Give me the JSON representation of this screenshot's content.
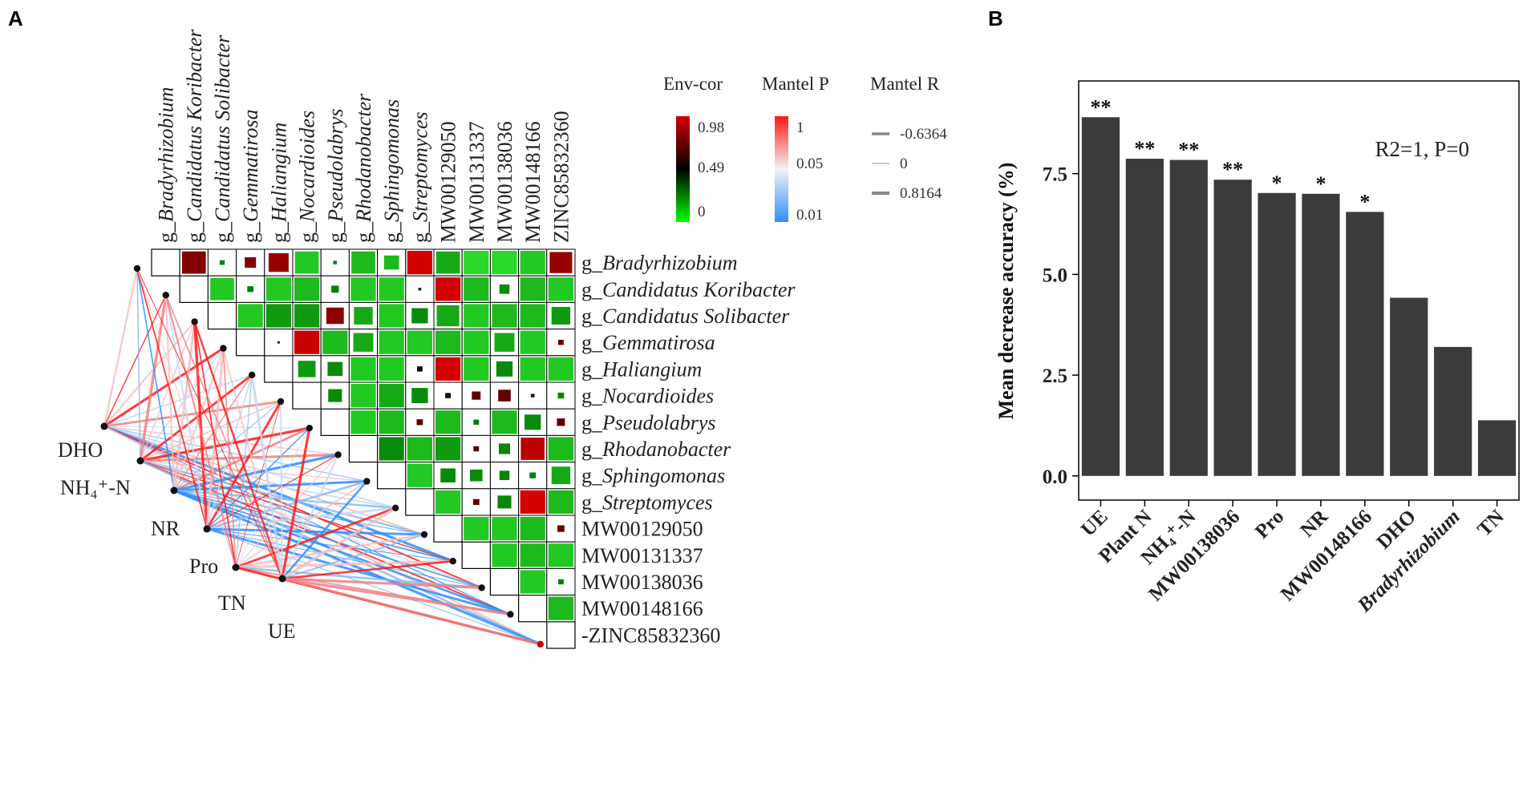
{
  "panels": {
    "a": "A",
    "b": "B"
  },
  "colors": {
    "env_high": "#d40000",
    "env_mid": "#000000",
    "env_low": "#00ff00",
    "mantel_high": "#ff1a1a",
    "mantel_mid": "#f2f2f2",
    "mantel_low": "#2e8fff",
    "bar": "#3b3b3b",
    "diag_green": "#2fe82f"
  },
  "chart_data": [
    {
      "type": "heatmap",
      "taxa_labels": [
        {
          "prefix": "g_",
          "name": "Bradyrhizobium",
          "italic": true
        },
        {
          "prefix": "g_",
          "name": "Candidatus Koribacter",
          "italic": true
        },
        {
          "prefix": "g_",
          "name": "Candidatus Solibacter",
          "italic": true
        },
        {
          "prefix": "g_",
          "name": "Gemmatirosa",
          "italic": true
        },
        {
          "prefix": "g_",
          "name": "Haliangium",
          "italic": true
        },
        {
          "prefix": "g_",
          "name": "Nocardioides",
          "italic": true
        },
        {
          "prefix": "g_",
          "name": "Pseudolabrys",
          "italic": true
        },
        {
          "prefix": "g_",
          "name": "Rhodanobacter",
          "italic": true
        },
        {
          "prefix": "g_",
          "name": "Sphingomonas",
          "italic": true
        },
        {
          "prefix": "g_",
          "name": "Streptomyces",
          "italic": true
        },
        {
          "prefix": "",
          "name": "MW00129050",
          "italic": false
        },
        {
          "prefix": "",
          "name": "MW00131337",
          "italic": false
        },
        {
          "prefix": "",
          "name": "MW00138036",
          "italic": false
        },
        {
          "prefix": "",
          "name": "MW00148166",
          "italic": false
        },
        {
          "prefix": "",
          "name": "ZINC85832360",
          "italic": false
        }
      ],
      "row_prefix_suffix": "-",
      "env_factors": [
        "DHO",
        "NH₄⁺-N",
        "NR",
        "Pro",
        "TN",
        "UE"
      ],
      "cells": [
        [
          1,
          0,
          0.78,
          0.95
        ],
        [
          2,
          0,
          0.08,
          0.2
        ],
        [
          3,
          0,
          0.78,
          0.45
        ],
        [
          4,
          0,
          0.82,
          0.8
        ],
        [
          5,
          0,
          0.02,
          0.95
        ],
        [
          6,
          0,
          0.08,
          0.15
        ],
        [
          7,
          0,
          0.03,
          0.95
        ],
        [
          8,
          0,
          0.03,
          0.6
        ],
        [
          9,
          0,
          0.98,
          1.0
        ],
        [
          10,
          0,
          0.04,
          0.95
        ],
        [
          11,
          0,
          0.01,
          1.0
        ],
        [
          12,
          0,
          0.01,
          1.0
        ],
        [
          13,
          0,
          0.02,
          1.0
        ],
        [
          14,
          0,
          0.82,
          0.9
        ],
        [
          2,
          1,
          0.02,
          0.95
        ],
        [
          3,
          1,
          0.1,
          0.25
        ],
        [
          4,
          1,
          0.02,
          1.0
        ],
        [
          5,
          1,
          0.03,
          1.0
        ],
        [
          6,
          1,
          0.1,
          0.3
        ],
        [
          7,
          1,
          0.02,
          1.0
        ],
        [
          8,
          1,
          0.02,
          1.0
        ],
        [
          9,
          1,
          0.3,
          0.12
        ],
        [
          10,
          1,
          0.95,
          1.0
        ],
        [
          11,
          1,
          0.03,
          1.0
        ],
        [
          12,
          1,
          0.06,
          0.4
        ],
        [
          13,
          1,
          0.03,
          1.0
        ],
        [
          14,
          1,
          0.02,
          1.0
        ],
        [
          3,
          2,
          0.02,
          1.0
        ],
        [
          4,
          2,
          0.05,
          1.0
        ],
        [
          5,
          2,
          0.05,
          1.0
        ],
        [
          6,
          2,
          0.8,
          0.7
        ],
        [
          7,
          2,
          0.04,
          0.75
        ],
        [
          8,
          2,
          0.02,
          1.0
        ],
        [
          9,
          2,
          0.06,
          0.65
        ],
        [
          10,
          2,
          0.04,
          0.9
        ],
        [
          11,
          2,
          0.02,
          1.0
        ],
        [
          12,
          2,
          0.03,
          1.0
        ],
        [
          13,
          2,
          0.03,
          1.0
        ],
        [
          14,
          2,
          0.05,
          0.75
        ],
        [
          4,
          3,
          0.3,
          0.1
        ],
        [
          5,
          3,
          0.93,
          1.0
        ],
        [
          6,
          3,
          0.03,
          1.0
        ],
        [
          7,
          3,
          0.04,
          0.8
        ],
        [
          8,
          3,
          0.02,
          1.0
        ],
        [
          9,
          3,
          0.02,
          1.0
        ],
        [
          10,
          3,
          0.03,
          1.0
        ],
        [
          11,
          3,
          0.02,
          1.0
        ],
        [
          12,
          3,
          0.04,
          0.8
        ],
        [
          13,
          3,
          0.02,
          1.0
        ],
        [
          14,
          3,
          0.7,
          0.22
        ],
        [
          5,
          4,
          0.05,
          0.7
        ],
        [
          6,
          4,
          0.06,
          0.6
        ],
        [
          7,
          4,
          0.02,
          1.0
        ],
        [
          8,
          4,
          0.02,
          1.0
        ],
        [
          9,
          4,
          0.55,
          0.22
        ],
        [
          10,
          4,
          0.97,
          1.0
        ],
        [
          11,
          4,
          0.02,
          1.0
        ],
        [
          12,
          4,
          0.06,
          0.65
        ],
        [
          13,
          4,
          0.02,
          1.0
        ],
        [
          14,
          4,
          0.02,
          1.0
        ],
        [
          6,
          5,
          0.06,
          0.55
        ],
        [
          7,
          5,
          0.02,
          1.0
        ],
        [
          8,
          5,
          0.04,
          1.0
        ],
        [
          9,
          5,
          0.06,
          0.65
        ],
        [
          10,
          5,
          0.45,
          0.22
        ],
        [
          11,
          5,
          0.7,
          0.35
        ],
        [
          12,
          5,
          0.72,
          0.5
        ],
        [
          13,
          5,
          0.35,
          0.15
        ],
        [
          14,
          5,
          0.08,
          0.25
        ],
        [
          7,
          6,
          0.02,
          1.0
        ],
        [
          8,
          6,
          0.03,
          1.0
        ],
        [
          9,
          6,
          0.7,
          0.25
        ],
        [
          10,
          6,
          0.03,
          1.0
        ],
        [
          11,
          6,
          0.1,
          0.22
        ],
        [
          12,
          6,
          0.03,
          1.0
        ],
        [
          13,
          6,
          0.06,
          0.65
        ],
        [
          14,
          6,
          0.7,
          0.32
        ],
        [
          8,
          7,
          0.06,
          1.0
        ],
        [
          9,
          7,
          0.03,
          1.0
        ],
        [
          10,
          7,
          0.05,
          1.0
        ],
        [
          11,
          7,
          0.65,
          0.22
        ],
        [
          12,
          7,
          0.08,
          0.45
        ],
        [
          13,
          7,
          0.9,
          0.95
        ],
        [
          14,
          7,
          0.03,
          1.0
        ],
        [
          9,
          8,
          0.02,
          1.0
        ],
        [
          10,
          8,
          0.06,
          0.6
        ],
        [
          11,
          8,
          0.06,
          0.5
        ],
        [
          12,
          8,
          0.08,
          0.4
        ],
        [
          13,
          8,
          0.1,
          0.25
        ],
        [
          14,
          8,
          0.04,
          0.75
        ],
        [
          10,
          9,
          0.02,
          1.0
        ],
        [
          11,
          9,
          0.7,
          0.25
        ],
        [
          12,
          9,
          0.07,
          0.55
        ],
        [
          13,
          9,
          0.98,
          1.0
        ],
        [
          14,
          9,
          0.03,
          1.0
        ],
        [
          11,
          10,
          0.02,
          1.0
        ],
        [
          12,
          10,
          0.02,
          1.0
        ],
        [
          13,
          10,
          0.03,
          1.0
        ],
        [
          14,
          10,
          0.7,
          0.28
        ],
        [
          12,
          11,
          0.02,
          1.0
        ],
        [
          13,
          11,
          0.03,
          1.0
        ],
        [
          14,
          11,
          0.02,
          1.0
        ],
        [
          13,
          12,
          0.02,
          1.0
        ],
        [
          14,
          12,
          0.1,
          0.22
        ],
        [
          14,
          13,
          0.03,
          1.0
        ]
      ],
      "legend": {
        "env_cor": {
          "title": "Env-cor",
          "labels": [
            "0.98",
            "0.49",
            "0"
          ]
        },
        "mantel_p": {
          "title": "Mantel P",
          "labels": [
            "1",
            "0.05",
            "0.01"
          ]
        },
        "mantel_r": {
          "title": "Mantel R",
          "labels": [
            "-0.6364",
            "0",
            "0.8164"
          ]
        }
      }
    },
    {
      "type": "bar",
      "categories": [
        "UE",
        "Plant N",
        "NH₄⁺-N",
        "MW00138036",
        "Pro",
        "NR",
        "MW00148166",
        "DHO",
        "Bradyrhizobium",
        "TN"
      ],
      "italic_categories": [
        "Bradyrhizobium"
      ],
      "values": [
        8.9,
        7.87,
        7.84,
        7.35,
        7.02,
        7.0,
        6.55,
        4.42,
        3.2,
        1.38
      ],
      "significance": [
        "**",
        "**",
        "**",
        "**",
        "*",
        "*",
        "*",
        "",
        "",
        ""
      ],
      "ylabel": "Mean decrease accuracy (%)",
      "xlabel": "",
      "ylim": [
        -0.6,
        9.8
      ],
      "yticks": [
        "0.0",
        "2.5",
        "5.0",
        "7.5"
      ],
      "annotation": "R2=1, P=0"
    }
  ]
}
